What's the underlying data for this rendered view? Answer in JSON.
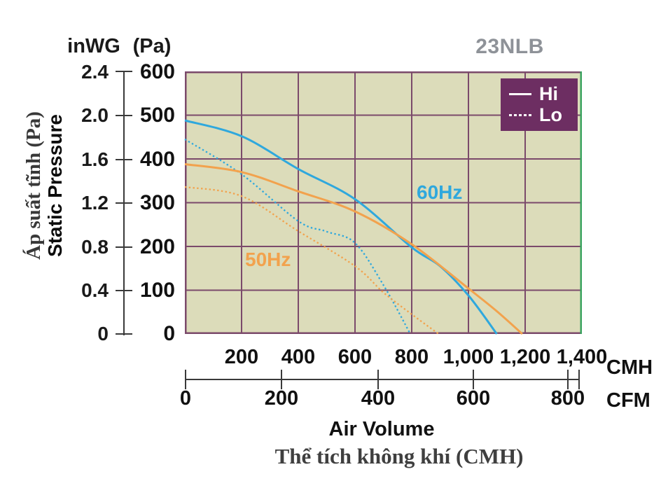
{
  "title": "23NLB",
  "legend": {
    "hi_label": "Hi",
    "lo_label": "Lo"
  },
  "y_axis": {
    "unit_left": "inWG",
    "unit_right": "(Pa)",
    "inwg_ticks": [
      "2.4",
      "2.0",
      "1.6",
      "1.2",
      "0.8",
      "0.4",
      "0"
    ],
    "pa_ticks": [
      "600",
      "500",
      "400",
      "300",
      "200",
      "100",
      "0"
    ],
    "label_vi": "Áp suất tĩnh (Pa)",
    "label_en": "Static Pressure"
  },
  "x_axis": {
    "cmh_ticks": [
      "200",
      "400",
      "600",
      "800",
      "1,000",
      "1,200",
      "1,400"
    ],
    "cmh_unit": "CMH",
    "cfm_ticks": [
      "0",
      "200",
      "400",
      "600",
      "800"
    ],
    "cfm_unit": "CFM",
    "label_en": "Air Volume",
    "label_vi": "Thể tích không khí (CMH)"
  },
  "annotations": {
    "hz60": "60Hz",
    "hz50": "50Hz"
  },
  "colors": {
    "curve_60hz": "#2fa8dd",
    "curve_50hz": "#f2a24d",
    "grid": "#7b4a6b",
    "plot_background": "#dcdcba",
    "plot_border_right": "#3aa35f",
    "legend_background": "#6d2e62",
    "title_gray": "#8e9298"
  },
  "chart_data": {
    "type": "line",
    "title": "23NLB",
    "xlabel": "Air Volume",
    "xlabel_vi": "Thể tích không khí (CMH)",
    "ylabel": "Static Pressure",
    "ylabel_vi": "Áp suất tĩnh (Pa)",
    "xlim": [
      0,
      1400
    ],
    "ylim": [
      0,
      600
    ],
    "x_unit_primary": "CMH",
    "x_unit_secondary": "CFM",
    "y_unit_primary": "Pa",
    "y_unit_secondary": "inWG",
    "x_ticks_cmh": [
      200,
      400,
      600,
      800,
      1000,
      1200,
      1400
    ],
    "x_ticks_cfm": [
      0,
      200,
      400,
      600,
      800
    ],
    "y_ticks_pa": [
      600,
      500,
      400,
      300,
      200,
      100,
      0
    ],
    "y_ticks_inwg": [
      2.4,
      2.0,
      1.6,
      1.2,
      0.8,
      0.4,
      0
    ],
    "grid": true,
    "legend_position": "top-right",
    "legend_entries": [
      "Hi",
      "Lo"
    ],
    "series": [
      {
        "name": "60Hz Hi",
        "frequency": "60Hz",
        "mode": "Hi",
        "line_style": "solid",
        "color": "#2fa8dd",
        "points_cmh_pa": [
          [
            0,
            488
          ],
          [
            200,
            452
          ],
          [
            400,
            377
          ],
          [
            600,
            308
          ],
          [
            800,
            198
          ],
          [
            900,
            155
          ],
          [
            1000,
            88
          ],
          [
            1100,
            0
          ]
        ]
      },
      {
        "name": "60Hz Lo",
        "frequency": "60Hz",
        "mode": "Lo",
        "line_style": "dotted",
        "color": "#2fa8dd",
        "points_cmh_pa": [
          [
            0,
            445
          ],
          [
            200,
            365
          ],
          [
            400,
            258
          ],
          [
            500,
            234
          ],
          [
            600,
            208
          ],
          [
            700,
            112
          ],
          [
            795,
            0
          ]
        ]
      },
      {
        "name": "50Hz Hi",
        "frequency": "50Hz",
        "mode": "Hi",
        "line_style": "solid",
        "color": "#f2a24d",
        "points_cmh_pa": [
          [
            0,
            388
          ],
          [
            200,
            370
          ],
          [
            400,
            326
          ],
          [
            600,
            280
          ],
          [
            800,
            205
          ],
          [
            1000,
            104
          ],
          [
            1100,
            52
          ],
          [
            1190,
            0
          ]
        ]
      },
      {
        "name": "50Hz Lo",
        "frequency": "50Hz",
        "mode": "Lo",
        "line_style": "dotted",
        "color": "#f2a24d",
        "points_cmh_pa": [
          [
            0,
            336
          ],
          [
            200,
            315
          ],
          [
            400,
            235
          ],
          [
            600,
            155
          ],
          [
            700,
            95
          ],
          [
            800,
            45
          ],
          [
            895,
            0
          ]
        ]
      }
    ]
  }
}
